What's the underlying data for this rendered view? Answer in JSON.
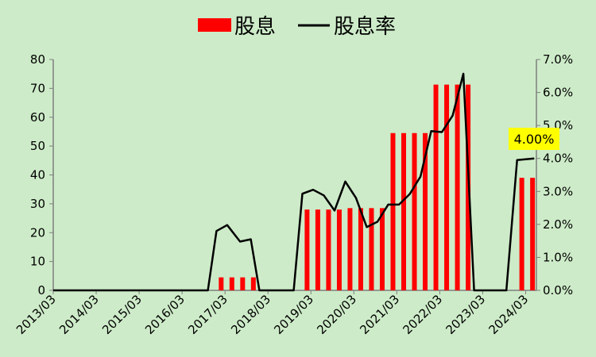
{
  "chart_data": {
    "type": "bar",
    "x_tick_labels": [
      "2013/03",
      "2014/03",
      "2015/03",
      "2016/03",
      "2017/03",
      "2018/03",
      "2019/03",
      "2020/03",
      "2021/03",
      "2022/03",
      "2023/03",
      "2024/03"
    ],
    "left_axis": {
      "ylim": [
        0,
        80
      ],
      "ticks": [
        "0",
        "10",
        "20",
        "30",
        "40",
        "50",
        "60",
        "70",
        "80"
      ]
    },
    "right_axis": {
      "ylim": [
        0,
        0.07
      ],
      "ticks": [
        "0.0%",
        "1.0%",
        "2.0%",
        "3.0%",
        "4.0%",
        "5.0%",
        "6.0%",
        "7.0%"
      ]
    },
    "legend": {
      "bar_label": "股息",
      "line_label": "股息率",
      "placement": "top"
    },
    "series": [
      {
        "name": "股息",
        "kind": "bar",
        "color": "#ff0000",
        "points": [
          {
            "x": 2016.91,
            "y": 4.5
          },
          {
            "x": 2017.16,
            "y": 4.5
          },
          {
            "x": 2017.41,
            "y": 4.5
          },
          {
            "x": 2017.66,
            "y": 4.5
          },
          {
            "x": 2018.91,
            "y": 28
          },
          {
            "x": 2019.16,
            "y": 28
          },
          {
            "x": 2019.41,
            "y": 28
          },
          {
            "x": 2019.66,
            "y": 28
          },
          {
            "x": 2019.91,
            "y": 28.5
          },
          {
            "x": 2020.16,
            "y": 28.5
          },
          {
            "x": 2020.41,
            "y": 28.5
          },
          {
            "x": 2020.66,
            "y": 28.5
          },
          {
            "x": 2020.91,
            "y": 54.5
          },
          {
            "x": 2021.16,
            "y": 54.5
          },
          {
            "x": 2021.41,
            "y": 54.5
          },
          {
            "x": 2021.66,
            "y": 54.5
          },
          {
            "x": 2021.91,
            "y": 71.3
          },
          {
            "x": 2022.16,
            "y": 71.3
          },
          {
            "x": 2022.41,
            "y": 71.3
          },
          {
            "x": 2022.66,
            "y": 71.3
          },
          {
            "x": 2023.91,
            "y": 39
          },
          {
            "x": 2024.16,
            "y": 39
          }
        ]
      },
      {
        "name": "股息率",
        "kind": "line",
        "color": "#000000",
        "points": [
          {
            "x": 2013.0,
            "y": 0
          },
          {
            "x": 2016.6,
            "y": 0
          },
          {
            "x": 2016.8,
            "y": 0.018
          },
          {
            "x": 2017.05,
            "y": 0.0198
          },
          {
            "x": 2017.35,
            "y": 0.0148
          },
          {
            "x": 2017.6,
            "y": 0.0155
          },
          {
            "x": 2017.8,
            "y": 0
          },
          {
            "x": 2018.6,
            "y": 0
          },
          {
            "x": 2018.8,
            "y": 0.0293
          },
          {
            "x": 2019.05,
            "y": 0.0305
          },
          {
            "x": 2019.3,
            "y": 0.0288
          },
          {
            "x": 2019.55,
            "y": 0.0242
          },
          {
            "x": 2019.8,
            "y": 0.033
          },
          {
            "x": 2020.05,
            "y": 0.028
          },
          {
            "x": 2020.3,
            "y": 0.0192
          },
          {
            "x": 2020.55,
            "y": 0.0208
          },
          {
            "x": 2020.8,
            "y": 0.026
          },
          {
            "x": 2021.05,
            "y": 0.026
          },
          {
            "x": 2021.3,
            "y": 0.0292
          },
          {
            "x": 2021.55,
            "y": 0.0345
          },
          {
            "x": 2021.8,
            "y": 0.0483
          },
          {
            "x": 2022.05,
            "y": 0.048
          },
          {
            "x": 2022.3,
            "y": 0.053
          },
          {
            "x": 2022.55,
            "y": 0.0657
          },
          {
            "x": 2022.8,
            "y": 0
          },
          {
            "x": 2023.55,
            "y": 0
          },
          {
            "x": 2023.8,
            "y": 0.0395
          },
          {
            "x": 2024.05,
            "y": 0.0398
          },
          {
            "x": 2024.2,
            "y": 0.04
          }
        ]
      }
    ],
    "annotation": {
      "text": "4.00%",
      "x": 2024.05,
      "y": 0.04,
      "background": "#ffff00"
    },
    "grid": false,
    "colors": {
      "background": "#cdebc8",
      "bar": "#ff0000",
      "line": "#000000",
      "axis": "#7f7f7f",
      "callout": "#ffff00"
    }
  }
}
